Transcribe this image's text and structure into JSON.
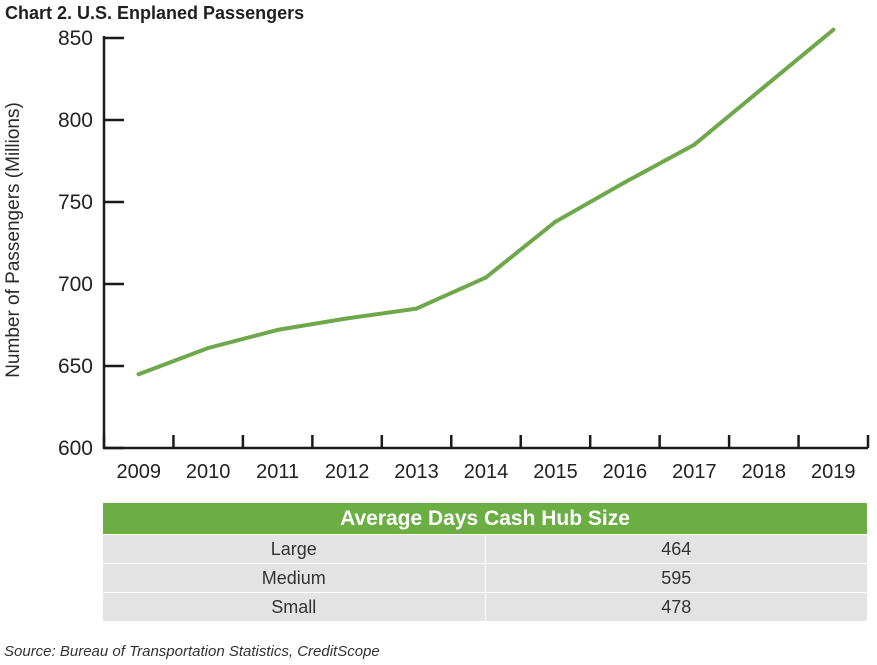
{
  "chart_data": {
    "type": "line",
    "title": "Chart 2. U.S. Enplaned Passengers",
    "xlabel": "",
    "ylabel": "Number of Passengers (Millions)",
    "x": [
      "2009",
      "2010",
      "2011",
      "2012",
      "2013",
      "2014",
      "2015",
      "2016",
      "2017",
      "2018",
      "2019"
    ],
    "series": [
      {
        "values": [
          645,
          661,
          672,
          679,
          685,
          704,
          738,
          762,
          785,
          820,
          855
        ]
      }
    ],
    "ylim": [
      600,
      850
    ],
    "yticks": [
      600,
      650,
      700,
      750,
      800,
      850
    ],
    "grid": false,
    "line_color": "#6fa84b"
  },
  "table": {
    "header": "Average Days Cash Hub Size",
    "rows": [
      {
        "size": "Large",
        "days": "464"
      },
      {
        "size": "Medium",
        "days": "595"
      },
      {
        "size": "Small",
        "days": "478"
      }
    ]
  },
  "source": "Source: Bureau of Transportation Statistics, CreditScope"
}
